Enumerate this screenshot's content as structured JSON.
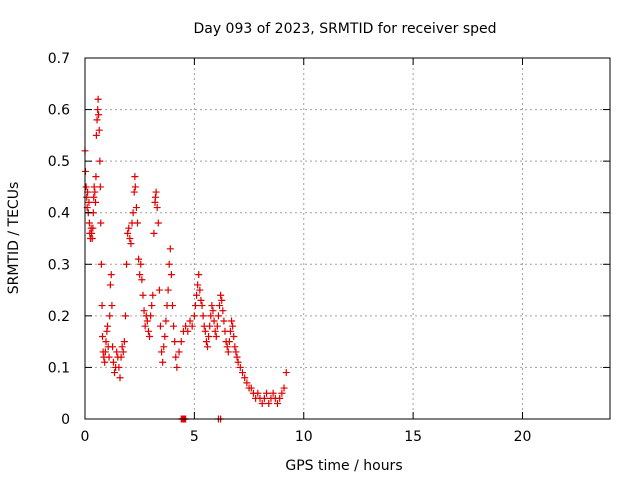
{
  "chart_data": {
    "type": "scatter",
    "title": "Day 093 of 2023, SRMTID for receiver sped",
    "xlabel": "GPS time / hours",
    "ylabel": "SRMTID / TECUs",
    "xlim": [
      0,
      24
    ],
    "ylim": [
      0,
      0.7
    ],
    "x_ticks": [
      "0",
      "5",
      "10",
      "15",
      "20"
    ],
    "y_ticks": [
      "0",
      "0.1",
      "0.2",
      "0.3",
      "0.4",
      "0.5",
      "0.6",
      "0.7"
    ],
    "grid": true,
    "marker": "+",
    "colors": {
      "series": "#e00000",
      "grid": "#a0a0a0",
      "axis": "#000000"
    },
    "series": [
      {
        "name": "SRMTID",
        "points": [
          [
            0.0,
            0.52
          ],
          [
            0.02,
            0.48
          ],
          [
            0.05,
            0.45
          ],
          [
            0.08,
            0.43
          ],
          [
            0.1,
            0.41
          ],
          [
            0.12,
            0.44
          ],
          [
            0.15,
            0.4
          ],
          [
            0.18,
            0.42
          ],
          [
            0.2,
            0.38
          ],
          [
            0.22,
            0.36
          ],
          [
            0.25,
            0.35
          ],
          [
            0.28,
            0.37
          ],
          [
            0.3,
            0.36
          ],
          [
            0.33,
            0.35
          ],
          [
            0.36,
            0.37
          ],
          [
            0.38,
            0.4
          ],
          [
            0.4,
            0.43
          ],
          [
            0.42,
            0.45
          ],
          [
            0.45,
            0.44
          ],
          [
            0.48,
            0.42
          ],
          [
            0.5,
            0.47
          ],
          [
            0.52,
            0.55
          ],
          [
            0.55,
            0.58
          ],
          [
            0.58,
            0.6
          ],
          [
            0.6,
            0.62
          ],
          [
            0.62,
            0.59
          ],
          [
            0.65,
            0.56
          ],
          [
            0.68,
            0.5
          ],
          [
            0.7,
            0.45
          ],
          [
            0.72,
            0.38
          ],
          [
            0.75,
            0.3
          ],
          [
            0.78,
            0.22
          ],
          [
            0.8,
            0.16
          ],
          [
            0.83,
            0.13
          ],
          [
            0.86,
            0.12
          ],
          [
            0.9,
            0.11
          ],
          [
            0.93,
            0.13
          ],
          [
            0.96,
            0.15
          ],
          [
            1.0,
            0.17
          ],
          [
            1.03,
            0.18
          ],
          [
            1.06,
            0.14
          ],
          [
            1.1,
            0.12
          ],
          [
            1.13,
            0.2
          ],
          [
            1.16,
            0.26
          ],
          [
            1.2,
            0.28
          ],
          [
            1.23,
            0.22
          ],
          [
            1.26,
            0.14
          ],
          [
            1.3,
            0.11
          ],
          [
            1.35,
            0.09
          ],
          [
            1.4,
            0.1
          ],
          [
            1.45,
            0.13
          ],
          [
            1.5,
            0.12
          ],
          [
            1.55,
            0.1
          ],
          [
            1.6,
            0.08
          ],
          [
            1.65,
            0.12
          ],
          [
            1.7,
            0.14
          ],
          [
            1.75,
            0.13
          ],
          [
            1.8,
            0.15
          ],
          [
            1.85,
            0.2
          ],
          [
            1.9,
            0.3
          ],
          [
            1.95,
            0.36
          ],
          [
            2.0,
            0.37
          ],
          [
            2.05,
            0.35
          ],
          [
            2.1,
            0.34
          ],
          [
            2.15,
            0.38
          ],
          [
            2.2,
            0.4
          ],
          [
            2.25,
            0.44
          ],
          [
            2.28,
            0.47
          ],
          [
            2.3,
            0.45
          ],
          [
            2.35,
            0.41
          ],
          [
            2.4,
            0.38
          ],
          [
            2.45,
            0.31
          ],
          [
            2.5,
            0.28
          ],
          [
            2.55,
            0.3
          ],
          [
            2.6,
            0.27
          ],
          [
            2.65,
            0.24
          ],
          [
            2.7,
            0.21
          ],
          [
            2.75,
            0.18
          ],
          [
            2.8,
            0.2
          ],
          [
            2.85,
            0.19
          ],
          [
            2.9,
            0.17
          ],
          [
            2.95,
            0.16
          ],
          [
            3.0,
            0.2
          ],
          [
            3.05,
            0.22
          ],
          [
            3.1,
            0.24
          ],
          [
            3.15,
            0.36
          ],
          [
            3.2,
            0.42
          ],
          [
            3.22,
            0.43
          ],
          [
            3.25,
            0.44
          ],
          [
            3.3,
            0.41
          ],
          [
            3.35,
            0.38
          ],
          [
            3.4,
            0.25
          ],
          [
            3.45,
            0.18
          ],
          [
            3.5,
            0.13
          ],
          [
            3.55,
            0.11
          ],
          [
            3.6,
            0.14
          ],
          [
            3.65,
            0.16
          ],
          [
            3.7,
            0.19
          ],
          [
            3.75,
            0.22
          ],
          [
            3.8,
            0.25
          ],
          [
            3.85,
            0.3
          ],
          [
            3.9,
            0.33
          ],
          [
            3.95,
            0.28
          ],
          [
            4.0,
            0.22
          ],
          [
            4.05,
            0.18
          ],
          [
            4.1,
            0.15
          ],
          [
            4.15,
            0.12
          ],
          [
            4.2,
            0.1
          ],
          [
            4.3,
            0.13
          ],
          [
            4.4,
            0.15
          ],
          [
            4.5,
            0.17
          ],
          [
            4.6,
            0.18
          ],
          [
            4.7,
            0.17
          ],
          [
            4.8,
            0.19
          ],
          [
            4.9,
            0.18
          ],
          [
            5.0,
            0.2
          ],
          [
            5.05,
            0.22
          ],
          [
            5.1,
            0.24
          ],
          [
            5.15,
            0.26
          ],
          [
            5.2,
            0.28
          ],
          [
            5.25,
            0.25
          ],
          [
            5.3,
            0.23
          ],
          [
            5.35,
            0.22
          ],
          [
            5.4,
            0.2
          ],
          [
            5.45,
            0.18
          ],
          [
            5.5,
            0.17
          ],
          [
            5.55,
            0.15
          ],
          [
            5.6,
            0.14
          ],
          [
            5.65,
            0.16
          ],
          [
            5.7,
            0.18
          ],
          [
            5.75,
            0.2
          ],
          [
            5.8,
            0.22
          ],
          [
            5.85,
            0.21
          ],
          [
            5.9,
            0.19
          ],
          [
            5.95,
            0.17
          ],
          [
            6.0,
            0.16
          ],
          [
            6.05,
            0.18
          ],
          [
            6.1,
            0.2
          ],
          [
            6.15,
            0.22
          ],
          [
            6.2,
            0.24
          ],
          [
            6.25,
            0.23
          ],
          [
            6.3,
            0.21
          ],
          [
            6.35,
            0.19
          ],
          [
            6.4,
            0.17
          ],
          [
            6.45,
            0.15
          ],
          [
            6.5,
            0.14
          ],
          [
            6.55,
            0.13
          ],
          [
            6.6,
            0.15
          ],
          [
            6.65,
            0.17
          ],
          [
            6.7,
            0.19
          ],
          [
            6.75,
            0.18
          ],
          [
            6.8,
            0.16
          ],
          [
            6.85,
            0.14
          ],
          [
            6.9,
            0.13
          ],
          [
            6.95,
            0.12
          ],
          [
            7.0,
            0.11
          ],
          [
            7.1,
            0.1
          ],
          [
            7.2,
            0.09
          ],
          [
            7.3,
            0.08
          ],
          [
            7.4,
            0.07
          ],
          [
            7.5,
            0.06
          ],
          [
            7.6,
            0.06
          ],
          [
            7.7,
            0.05
          ],
          [
            7.8,
            0.04
          ],
          [
            7.9,
            0.05
          ],
          [
            8.0,
            0.04
          ],
          [
            8.1,
            0.03
          ],
          [
            8.2,
            0.04
          ],
          [
            8.3,
            0.05
          ],
          [
            8.4,
            0.03
          ],
          [
            8.5,
            0.04
          ],
          [
            8.6,
            0.05
          ],
          [
            8.7,
            0.04
          ],
          [
            8.8,
            0.03
          ],
          [
            8.9,
            0.04
          ],
          [
            9.0,
            0.05
          ],
          [
            9.1,
            0.06
          ],
          [
            9.2,
            0.09
          ],
          [
            4.4,
            0.0
          ],
          [
            4.45,
            0.0
          ],
          [
            4.5,
            0.0
          ],
          [
            4.55,
            0.0
          ],
          [
            4.6,
            0.0
          ],
          [
            6.1,
            0.0
          ],
          [
            6.2,
            0.0
          ]
        ]
      }
    ]
  }
}
